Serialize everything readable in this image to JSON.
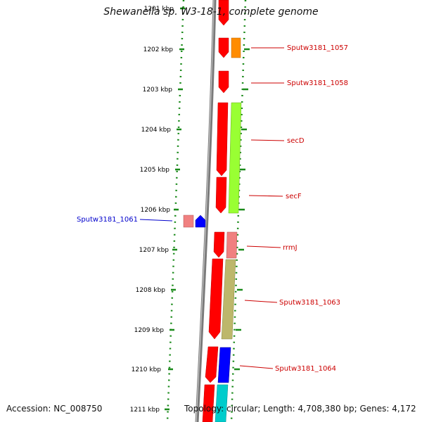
{
  "title": "Shewanella sp. W3-18-1, complete genome",
  "accession": "Accession: NC_008750",
  "topology": "Topology: circular; Length: 4,708,380 bp; Genes: 4,172",
  "ticks": [
    "1201 kbp",
    "1202 kbp",
    "1203 kbp",
    "1204 kbp",
    "1205 kbp",
    "1206 kbp",
    "1207 kbp",
    "1208 kbp",
    "1209 kbp",
    "1210 kbp",
    "1211 kbp"
  ],
  "gene_labels": [
    {
      "text": "Sputw3181_1057",
      "color": "#cc0000"
    },
    {
      "text": "Sputw3181_1058",
      "color": "#cc0000"
    },
    {
      "text": "secD",
      "color": "#cc0000"
    },
    {
      "text": "secF",
      "color": "#cc0000"
    },
    {
      "text": "Sputw3181_1061",
      "color": "#0000cc"
    },
    {
      "text": "rrmJ",
      "color": "#cc0000"
    },
    {
      "text": "Sputw3181_1063",
      "color": "#cc0000"
    },
    {
      "text": "Sputw3181_1064",
      "color": "#cc0000"
    }
  ],
  "colors": {
    "forward_strand": "#ff0000",
    "reverse_strand": "#0000ff",
    "backbone": "#808080",
    "gc_track": "#008000"
  }
}
